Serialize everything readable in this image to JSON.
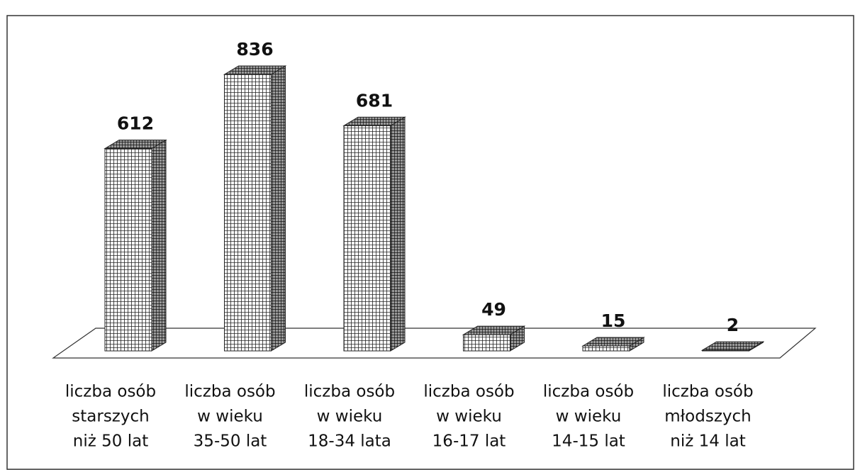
{
  "chart_data": {
    "type": "bar3d",
    "categories": [
      [
        "liczba osób",
        "starszych",
        "niż 50 lat"
      ],
      [
        "liczba osób",
        "w wieku",
        "35-50 lat"
      ],
      [
        "liczba osób",
        "w wieku",
        "18-34 lata"
      ],
      [
        "liczba osób",
        "w wieku",
        "16-17 lat"
      ],
      [
        "liczba osób",
        "w wieku",
        "14-15 lat"
      ],
      [
        "liczba osób",
        "młodszych",
        "niż 14 lat"
      ]
    ],
    "values": [
      612,
      836,
      681,
      49,
      15,
      2
    ],
    "color": "#555555"
  }
}
